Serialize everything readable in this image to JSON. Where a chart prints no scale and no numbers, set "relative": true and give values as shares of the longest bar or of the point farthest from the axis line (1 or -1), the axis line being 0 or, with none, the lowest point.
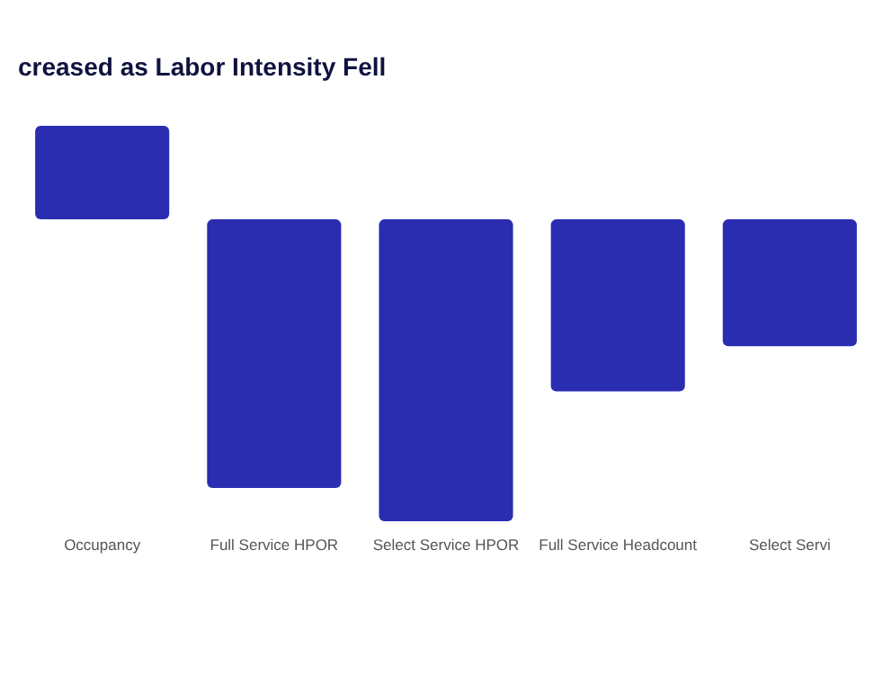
{
  "chart_data": {
    "type": "bar",
    "title": "creased as Labor Intensity Fell",
    "relative": true,
    "categories": [
      "Occupancy",
      "Full Service HPOR",
      "Select Service HPOR",
      "Full Service Headcount",
      "Select Servi"
    ],
    "values": [
      0.31,
      -0.89,
      -1,
      -0.57,
      -0.42
    ],
    "color": "#2a2db0"
  }
}
